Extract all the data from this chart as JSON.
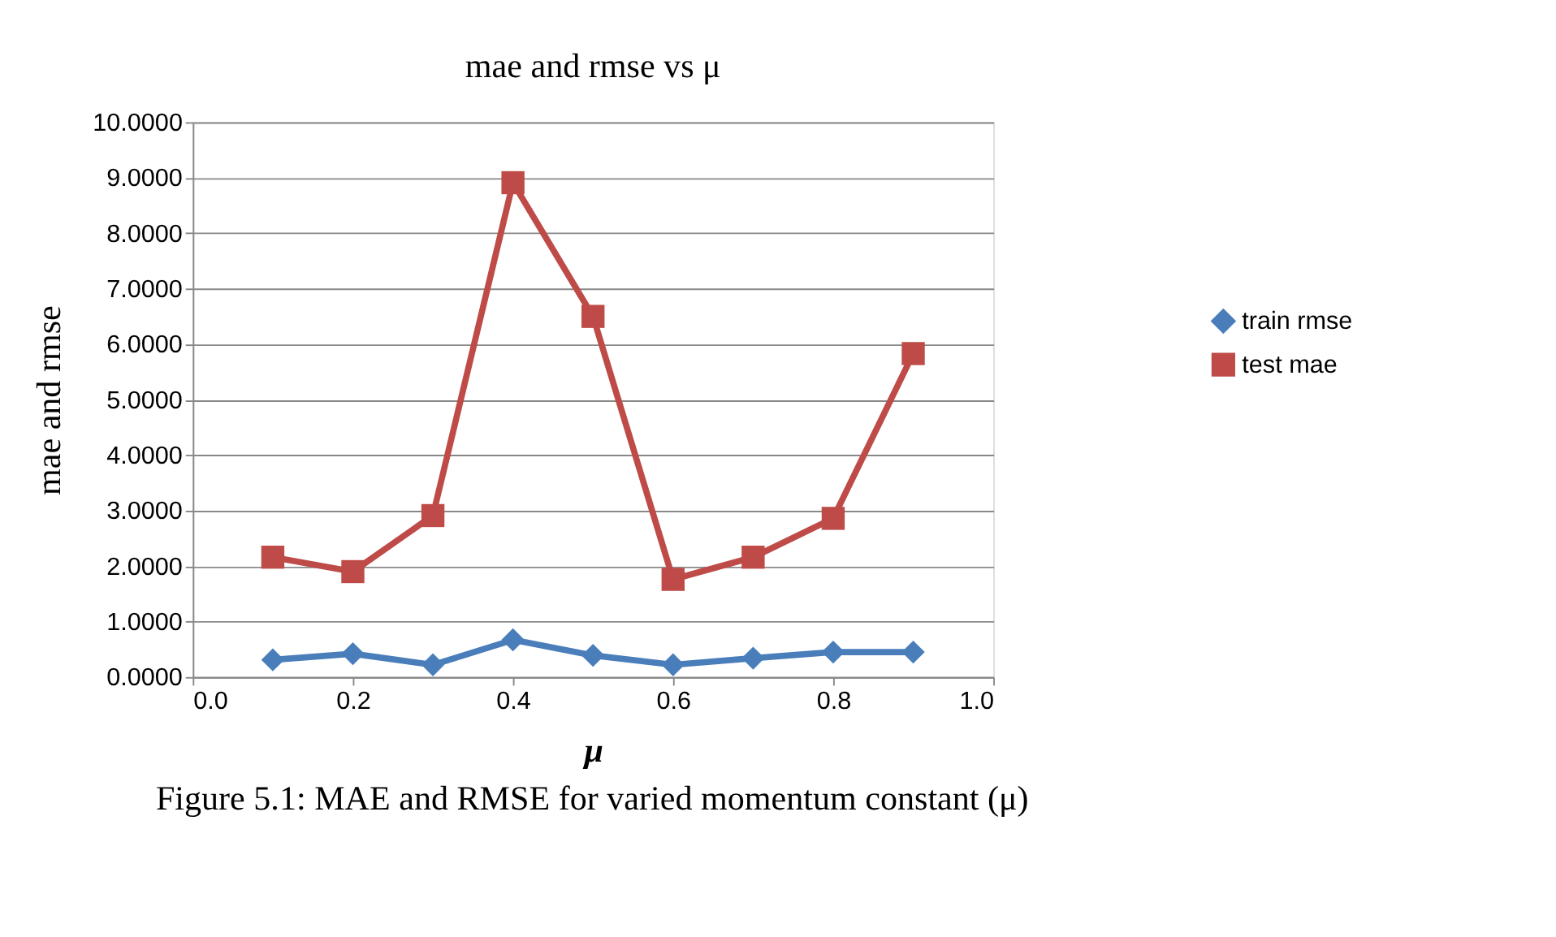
{
  "chart_data": {
    "type": "line",
    "title": "mae and rmse vs μ",
    "xlabel": "μ",
    "ylabel": "mae and rmse",
    "x": [
      0.1,
      0.2,
      0.3,
      0.4,
      0.5,
      0.6,
      0.7,
      0.8,
      0.9
    ],
    "series": [
      {
        "name": "train rmse",
        "color": "#4a7ebb",
        "marker": "diamond",
        "values": [
          0.31,
          0.42,
          0.22,
          0.67,
          0.39,
          0.22,
          0.34,
          0.45,
          0.45
        ]
      },
      {
        "name": "test mae",
        "color": "#be4b48",
        "marker": "square",
        "values": [
          2.16,
          1.9,
          2.91,
          8.91,
          6.5,
          1.76,
          2.16,
          2.86,
          5.83
        ]
      }
    ],
    "xlim": [
      0,
      1
    ],
    "xticks": [
      {
        "value": 0,
        "label": "0.0"
      },
      {
        "value": 0.2,
        "label": "0.2"
      },
      {
        "value": 0.4,
        "label": "0.4"
      },
      {
        "value": 0.6,
        "label": "0.6"
      },
      {
        "value": 0.8,
        "label": "0.8"
      },
      {
        "value": 1,
        "label": "1.0"
      }
    ],
    "ylim": [
      0,
      10
    ],
    "yticks": [
      {
        "value": 0,
        "label": "0.0000"
      },
      {
        "value": 1,
        "label": "1.0000"
      },
      {
        "value": 2,
        "label": "2.0000"
      },
      {
        "value": 3,
        "label": "3.0000"
      },
      {
        "value": 4,
        "label": "4.0000"
      },
      {
        "value": 5,
        "label": "5.0000"
      },
      {
        "value": 6,
        "label": "6.0000"
      },
      {
        "value": 7,
        "label": "7.0000"
      },
      {
        "value": 8,
        "label": "8.0000"
      },
      {
        "value": 9,
        "label": "9.0000"
      },
      {
        "value": 10,
        "label": "10.0000"
      }
    ],
    "grid": "y",
    "legend": "right",
    "line_style": "solid",
    "annotations": [
      "Figure 5.1: MAE and RMSE for varied momentum constant (μ)"
    ]
  }
}
